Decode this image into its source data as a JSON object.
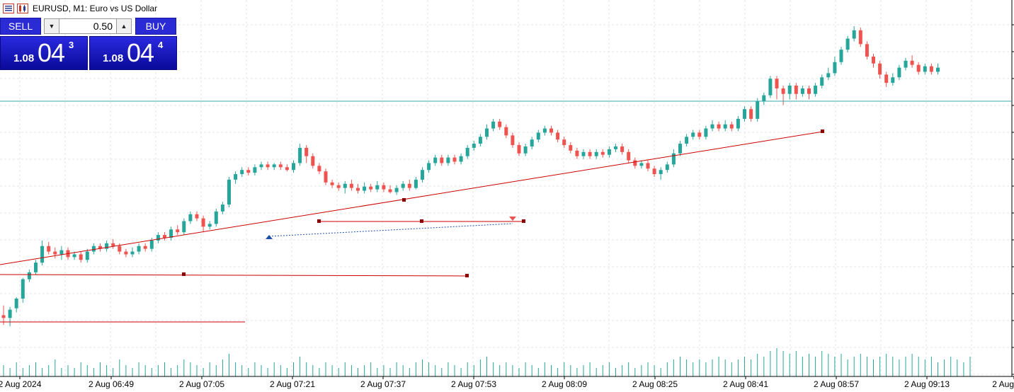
{
  "window": {
    "title": "EURUSD, M1:  Euro vs US Dollar"
  },
  "trade_panel": {
    "sell_label": "SELL",
    "buy_label": "BUY",
    "volume": "0.50",
    "sell_price_small": "1.08",
    "sell_price_big": "04",
    "sell_price_sup": "3",
    "buy_price_small": "1.08",
    "buy_price_big": "04",
    "buy_price_sup": "4"
  },
  "colors": {
    "bull": "#26a69a",
    "bear": "#ef5350",
    "trendline": "#cc0000",
    "hline": "#35a8a8",
    "grid": "#e6e6e6",
    "panel": "#1e1ec8"
  },
  "icons": {
    "chart_menu": "chart-list-icon",
    "chart_type": "candles-icon"
  },
  "chart_data": {
    "type": "candlestick",
    "symbol": "EURUSD",
    "timeframe": "M1",
    "x_ticks": [
      "2 Aug 2024",
      "2 Aug 06:49",
      "2 Aug 07:05",
      "2 Aug 07:21",
      "2 Aug 07:37",
      "2 Aug 07:53",
      "2 Aug 08:09",
      "2 Aug 08:25",
      "2 Aug 08:41",
      "2 Aug 08:57",
      "2 Aug 09:13",
      "2 Aug"
    ],
    "candles": [
      [
        0.2,
        0.18,
        0.27,
        0.13
      ],
      [
        0.18,
        0.24,
        0.26,
        0.12
      ],
      [
        0.25,
        0.32,
        0.33,
        0.22
      ],
      [
        0.32,
        0.46,
        0.47,
        0.29
      ],
      [
        0.46,
        0.51,
        0.53,
        0.44
      ],
      [
        0.51,
        0.58,
        0.6,
        0.49
      ],
      [
        0.58,
        0.7,
        0.74,
        0.56
      ],
      [
        0.7,
        0.66,
        0.73,
        0.64
      ],
      [
        0.66,
        0.64,
        0.69,
        0.61
      ],
      [
        0.64,
        0.67,
        0.7,
        0.6
      ],
      [
        0.67,
        0.62,
        0.69,
        0.6
      ],
      [
        0.62,
        0.64,
        0.66,
        0.6
      ],
      [
        0.64,
        0.6,
        0.66,
        0.58
      ],
      [
        0.6,
        0.66,
        0.68,
        0.58
      ],
      [
        0.66,
        0.7,
        0.72,
        0.64
      ],
      [
        0.7,
        0.68,
        0.72,
        0.66
      ],
      [
        0.68,
        0.72,
        0.74,
        0.66
      ],
      [
        0.72,
        0.7,
        0.75,
        0.68
      ],
      [
        0.7,
        0.66,
        0.72,
        0.64
      ],
      [
        0.66,
        0.64,
        0.68,
        0.62
      ],
      [
        0.64,
        0.66,
        0.69,
        0.62
      ],
      [
        0.66,
        0.7,
        0.72,
        0.64
      ],
      [
        0.7,
        0.68,
        0.72,
        0.66
      ],
      [
        0.68,
        0.74,
        0.76,
        0.66
      ],
      [
        0.74,
        0.78,
        0.8,
        0.72
      ],
      [
        0.78,
        0.76,
        0.8,
        0.74
      ],
      [
        0.76,
        0.82,
        0.84,
        0.74
      ],
      [
        0.82,
        0.8,
        0.85,
        0.78
      ],
      [
        0.8,
        0.88,
        0.9,
        0.78
      ],
      [
        0.88,
        0.93,
        0.95,
        0.86
      ],
      [
        0.93,
        0.9,
        0.95,
        0.88
      ],
      [
        0.9,
        0.84,
        0.92,
        0.8
      ],
      [
        0.84,
        0.86,
        0.88,
        0.82
      ],
      [
        0.86,
        0.95,
        0.97,
        0.84
      ],
      [
        0.95,
        1.0,
        1.02,
        0.93
      ],
      [
        1.0,
        1.18,
        1.2,
        0.98
      ],
      [
        1.18,
        1.22,
        1.24,
        1.15
      ],
      [
        1.22,
        1.25,
        1.27,
        1.2
      ],
      [
        1.25,
        1.23,
        1.27,
        1.21
      ],
      [
        1.23,
        1.27,
        1.29,
        1.21
      ],
      [
        1.27,
        1.29,
        1.31,
        1.25
      ],
      [
        1.29,
        1.27,
        1.31,
        1.25
      ],
      [
        1.27,
        1.29,
        1.3,
        1.25
      ],
      [
        1.29,
        1.27,
        1.31,
        1.25
      ],
      [
        1.27,
        1.25,
        1.29,
        1.24
      ],
      [
        1.25,
        1.3,
        1.32,
        1.23
      ],
      [
        1.3,
        1.41,
        1.44,
        1.28
      ],
      [
        1.41,
        1.35,
        1.43,
        1.3
      ],
      [
        1.35,
        1.28,
        1.37,
        1.26
      ],
      [
        1.28,
        1.24,
        1.3,
        1.22
      ],
      [
        1.24,
        1.16,
        1.26,
        1.14
      ],
      [
        1.16,
        1.14,
        1.18,
        1.12
      ],
      [
        1.14,
        1.12,
        1.16,
        1.1
      ],
      [
        1.12,
        1.15,
        1.17,
        1.08
      ],
      [
        1.15,
        1.12,
        1.18,
        1.1
      ],
      [
        1.12,
        1.1,
        1.15,
        1.08
      ],
      [
        1.1,
        1.13,
        1.16,
        1.08
      ],
      [
        1.13,
        1.11,
        1.15,
        1.09
      ],
      [
        1.11,
        1.14,
        1.17,
        1.09
      ],
      [
        1.14,
        1.11,
        1.16,
        1.09
      ],
      [
        1.11,
        1.09,
        1.14,
        1.08
      ],
      [
        1.09,
        1.12,
        1.14,
        1.07
      ],
      [
        1.12,
        1.15,
        1.17,
        1.1
      ],
      [
        1.15,
        1.12,
        1.18,
        1.1
      ],
      [
        1.12,
        1.18,
        1.2,
        1.11
      ],
      [
        1.18,
        1.25,
        1.27,
        1.16
      ],
      [
        1.25,
        1.3,
        1.32,
        1.23
      ],
      [
        1.3,
        1.34,
        1.36,
        1.28
      ],
      [
        1.34,
        1.3,
        1.36,
        1.28
      ],
      [
        1.3,
        1.34,
        1.36,
        1.28
      ],
      [
        1.34,
        1.31,
        1.36,
        1.29
      ],
      [
        1.31,
        1.35,
        1.37,
        1.29
      ],
      [
        1.35,
        1.41,
        1.43,
        1.33
      ],
      [
        1.41,
        1.44,
        1.46,
        1.39
      ],
      [
        1.44,
        1.49,
        1.51,
        1.42
      ],
      [
        1.49,
        1.55,
        1.58,
        1.47
      ],
      [
        1.55,
        1.6,
        1.62,
        1.53
      ],
      [
        1.6,
        1.56,
        1.62,
        1.54
      ],
      [
        1.56,
        1.5,
        1.58,
        1.48
      ],
      [
        1.5,
        1.43,
        1.52,
        1.41
      ],
      [
        1.43,
        1.37,
        1.45,
        1.35
      ],
      [
        1.37,
        1.42,
        1.44,
        1.35
      ],
      [
        1.42,
        1.47,
        1.49,
        1.4
      ],
      [
        1.47,
        1.52,
        1.54,
        1.45
      ],
      [
        1.52,
        1.55,
        1.57,
        1.5
      ],
      [
        1.55,
        1.52,
        1.57,
        1.5
      ],
      [
        1.52,
        1.47,
        1.54,
        1.45
      ],
      [
        1.47,
        1.43,
        1.49,
        1.41
      ],
      [
        1.43,
        1.39,
        1.45,
        1.37
      ],
      [
        1.39,
        1.35,
        1.41,
        1.33
      ],
      [
        1.35,
        1.38,
        1.4,
        1.33
      ],
      [
        1.38,
        1.35,
        1.4,
        1.33
      ],
      [
        1.35,
        1.38,
        1.4,
        1.33
      ],
      [
        1.38,
        1.36,
        1.4,
        1.34
      ],
      [
        1.36,
        1.4,
        1.42,
        1.34
      ],
      [
        1.4,
        1.42,
        1.44,
        1.38
      ],
      [
        1.42,
        1.38,
        1.44,
        1.36
      ],
      [
        1.38,
        1.32,
        1.4,
        1.3
      ],
      [
        1.32,
        1.28,
        1.34,
        1.26
      ],
      [
        1.28,
        1.3,
        1.32,
        1.26
      ],
      [
        1.3,
        1.26,
        1.32,
        1.24
      ],
      [
        1.26,
        1.22,
        1.28,
        1.2
      ],
      [
        1.22,
        1.25,
        1.27,
        1.18
      ],
      [
        1.25,
        1.29,
        1.31,
        1.23
      ],
      [
        1.29,
        1.37,
        1.4,
        1.27
      ],
      [
        1.37,
        1.44,
        1.46,
        1.35
      ],
      [
        1.44,
        1.49,
        1.51,
        1.42
      ],
      [
        1.49,
        1.52,
        1.54,
        1.47
      ],
      [
        1.52,
        1.49,
        1.54,
        1.47
      ],
      [
        1.49,
        1.55,
        1.57,
        1.47
      ],
      [
        1.55,
        1.58,
        1.61,
        1.53
      ],
      [
        1.58,
        1.55,
        1.6,
        1.53
      ],
      [
        1.55,
        1.58,
        1.61,
        1.53
      ],
      [
        1.58,
        1.55,
        1.6,
        1.53
      ],
      [
        1.55,
        1.62,
        1.64,
        1.53
      ],
      [
        1.62,
        1.69,
        1.71,
        1.6
      ],
      [
        1.69,
        1.62,
        1.71,
        1.6
      ],
      [
        1.62,
        1.75,
        1.77,
        1.6
      ],
      [
        1.75,
        1.79,
        1.81,
        1.72
      ],
      [
        1.79,
        1.91,
        1.93,
        1.77
      ],
      [
        1.91,
        1.84,
        1.93,
        1.76
      ],
      [
        1.84,
        1.8,
        1.86,
        1.72
      ],
      [
        1.8,
        1.86,
        1.88,
        1.76
      ],
      [
        1.86,
        1.8,
        1.88,
        1.76
      ],
      [
        1.8,
        1.84,
        1.86,
        1.78
      ],
      [
        1.84,
        1.8,
        1.86,
        1.76
      ],
      [
        1.8,
        1.86,
        1.88,
        1.78
      ],
      [
        1.86,
        1.92,
        1.94,
        1.84
      ],
      [
        1.92,
        1.95,
        1.99,
        1.9
      ],
      [
        1.95,
        2.03,
        2.07,
        1.93
      ],
      [
        2.03,
        2.12,
        2.14,
        2.01
      ],
      [
        2.12,
        2.2,
        2.22,
        2.1
      ],
      [
        2.2,
        2.26,
        2.29,
        2.18
      ],
      [
        2.26,
        2.16,
        2.28,
        2.14
      ],
      [
        2.16,
        2.07,
        2.18,
        2.05
      ],
      [
        2.07,
        2.02,
        2.09,
        1.99
      ],
      [
        2.02,
        1.94,
        2.04,
        1.91
      ],
      [
        1.94,
        1.88,
        1.96,
        1.85
      ],
      [
        1.88,
        1.92,
        1.95,
        1.86
      ],
      [
        1.92,
        1.99,
        2.01,
        1.9
      ],
      [
        1.99,
        2.04,
        2.06,
        1.97
      ],
      [
        2.04,
        2.01,
        2.08,
        1.99
      ],
      [
        2.01,
        1.96,
        2.03,
        1.94
      ],
      [
        1.96,
        2.0,
        2.02,
        1.94
      ],
      [
        2.0,
        1.96,
        2.02,
        1.94
      ],
      [
        1.96,
        1.99,
        2.02,
        1.94
      ]
    ],
    "volume_fraction": [
      0.4,
      0.3,
      0.5,
      0.3,
      0.4,
      0.5,
      0.3,
      0.4,
      0.6,
      0.3,
      0.4,
      0.3,
      0.5,
      0.4,
      0.3,
      0.5,
      0.4,
      0.3,
      0.6,
      0.4,
      0.3,
      0.5,
      0.4,
      0.3,
      0.4,
      0.5,
      0.3,
      0.4,
      0.6,
      0.5,
      0.4,
      0.3,
      0.5,
      0.4,
      0.6,
      0.8,
      0.5,
      0.4,
      0.3,
      0.5,
      0.4,
      0.3,
      0.5,
      0.4,
      0.3,
      0.5,
      0.7,
      0.5,
      0.4,
      0.3,
      0.5,
      0.4,
      0.3,
      0.5,
      0.4,
      0.3,
      0.4,
      0.5,
      0.3,
      0.4,
      0.3,
      0.5,
      0.4,
      0.3,
      0.5,
      0.6,
      0.5,
      0.4,
      0.3,
      0.5,
      0.4,
      0.3,
      0.5,
      0.4,
      0.6,
      0.7,
      0.5,
      0.4,
      0.5,
      0.4,
      0.3,
      0.5,
      0.4,
      0.3,
      0.5,
      0.4,
      0.3,
      0.5,
      0.4,
      0.3,
      0.4,
      0.5,
      0.3,
      0.4,
      0.5,
      0.3,
      0.4,
      0.5,
      0.3,
      0.4,
      0.5,
      0.4,
      0.3,
      0.5,
      0.6,
      0.7,
      0.6,
      0.5,
      0.6,
      0.5,
      0.6,
      0.7,
      0.6,
      0.5,
      0.6,
      0.7,
      0.6,
      0.8,
      0.7,
      0.9,
      1.0,
      0.9,
      0.8,
      0.9,
      0.7,
      0.8,
      0.7,
      0.9,
      0.8,
      0.7,
      0.8,
      0.6,
      0.7,
      0.8,
      0.7,
      0.6,
      0.7,
      0.8,
      0.7,
      0.6,
      0.7,
      0.8,
      0.7,
      0.6,
      0.7,
      0.5,
      0.6,
      0.7,
      0.6,
      0.5,
      0.7
    ]
  }
}
